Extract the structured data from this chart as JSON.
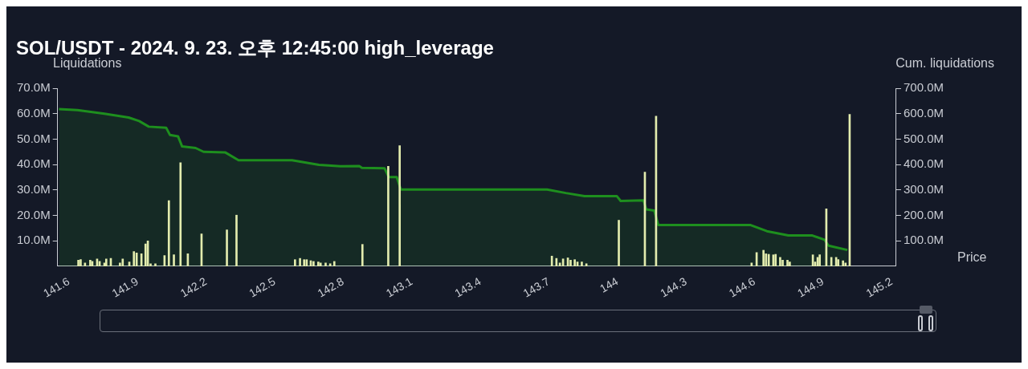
{
  "chart_data": {
    "type": "bar",
    "title": "SOL/USDT - 2024. 9. 23. 오후 12:45:00 high_leverage",
    "xlabel": "Price",
    "ylabel": "Liquidations",
    "y2label": "Cum. liquidations",
    "xlim": [
      141.55,
      145.22
    ],
    "xticks": [
      141.6,
      141.9,
      142.2,
      142.5,
      142.8,
      143.1,
      143.4,
      143.7,
      144,
      144.3,
      144.6,
      144.9,
      145.2
    ],
    "ylim": [
      0,
      70
    ],
    "yticks": [
      {
        "value": 10,
        "label": "10.0M"
      },
      {
        "value": 20,
        "label": "20.0M"
      },
      {
        "value": 30,
        "label": "30.0M"
      },
      {
        "value": 40,
        "label": "40.0M"
      },
      {
        "value": 50,
        "label": "50.0M"
      },
      {
        "value": 60,
        "label": "60.0M"
      },
      {
        "value": 70,
        "label": "70.0M"
      }
    ],
    "y2lim": [
      0,
      700
    ],
    "y2ticks": [
      {
        "value": 100,
        "label": "100.0M"
      },
      {
        "value": 200,
        "label": "200.0M"
      },
      {
        "value": 300,
        "label": "300.0M"
      },
      {
        "value": 400,
        "label": "400.0M"
      },
      {
        "value": 500,
        "label": "500.0M"
      },
      {
        "value": 600,
        "label": "600.0M"
      },
      {
        "value": 700,
        "label": "700.0M"
      }
    ],
    "grid": false,
    "legend": false,
    "series": [
      {
        "color": "#e3ecae",
        "x": [
          141.641,
          141.651,
          141.67,
          141.693,
          141.702,
          141.723,
          141.734,
          141.755,
          141.763,
          141.783,
          141.823,
          141.835,
          141.864,
          141.884,
          141.896,
          141.917,
          141.935,
          141.945,
          141.957,
          141.978,
          142.018,
          142.037,
          142.059,
          142.088,
          142.12,
          142.18,
          142.291,
          142.333,
          142.589,
          142.611,
          142.629,
          142.64,
          142.658,
          142.67,
          142.691,
          142.701,
          142.723,
          142.743,
          142.761,
          142.884,
          142.997,
          143.047,
          143.713,
          143.733,
          143.748,
          143.762,
          143.783,
          143.795,
          143.813,
          143.825,
          143.844,
          143.864,
          144.006,
          144.12,
          144.169,
          144.587,
          144.609,
          144.639,
          144.65,
          144.662,
          144.682,
          144.692,
          144.712,
          144.723,
          144.744,
          144.754,
          144.855,
          144.865,
          144.876,
          144.885,
          144.914,
          144.936,
          144.957,
          144.966,
          144.987,
          144.998,
          145.016
        ],
        "values": [
          2.4,
          2.6,
          1.3,
          2.4,
          1.9,
          2.9,
          1.9,
          1.3,
          2.9,
          3.1,
          1.3,
          2.9,
          1.7,
          5.8,
          5.2,
          4.9,
          8.8,
          10.0,
          1.0,
          1.0,
          4.2,
          25.8,
          4.5,
          40.7,
          4.9,
          12.7,
          14.3,
          20.1,
          2.6,
          3.1,
          2.6,
          2.6,
          2.2,
          1.9,
          1.7,
          1.3,
          1.3,
          1.0,
          1.9,
          8.6,
          39.3,
          47.4,
          4.0,
          3.1,
          1.3,
          2.9,
          3.3,
          2.4,
          2.6,
          1.7,
          1.7,
          1.0,
          18.1,
          37.0,
          59.0,
          1.3,
          5.4,
          6.3,
          4.9,
          4.7,
          4.5,
          4.7,
          3.5,
          2.4,
          2.4,
          1.7,
          4.5,
          1.7,
          3.5,
          4.5,
          22.6,
          3.5,
          3.5,
          2.6,
          2.2,
          1.3,
          59.7
        ]
      },
      {
        "type": "area",
        "axis": "y2",
        "color": "#1e8f1e",
        "x": [
          141.556,
          141.637,
          141.755,
          141.861,
          141.907,
          141.949,
          142.025,
          142.042,
          142.077,
          142.095,
          142.154,
          142.189,
          142.283,
          142.342,
          142.576,
          142.694,
          142.788,
          142.87,
          142.882,
          142.981,
          142.999,
          143.034,
          143.052,
          143.692,
          143.774,
          143.856,
          143.997,
          144.014,
          144.114,
          144.126,
          144.161,
          144.179,
          144.583,
          144.654,
          144.748,
          144.853,
          144.906,
          144.924,
          145.006
        ],
        "values": [
          618,
          614,
          600,
          585,
          571,
          549,
          545,
          516,
          511,
          471,
          465,
          450,
          448,
          417,
          417,
          399,
          393,
          394,
          387,
          385,
          351,
          351,
          302,
          302,
          288,
          276,
          276,
          257,
          259,
          224,
          219,
          162,
          162,
          138,
          121,
          121,
          104,
          81,
          64
        ]
      }
    ]
  }
}
